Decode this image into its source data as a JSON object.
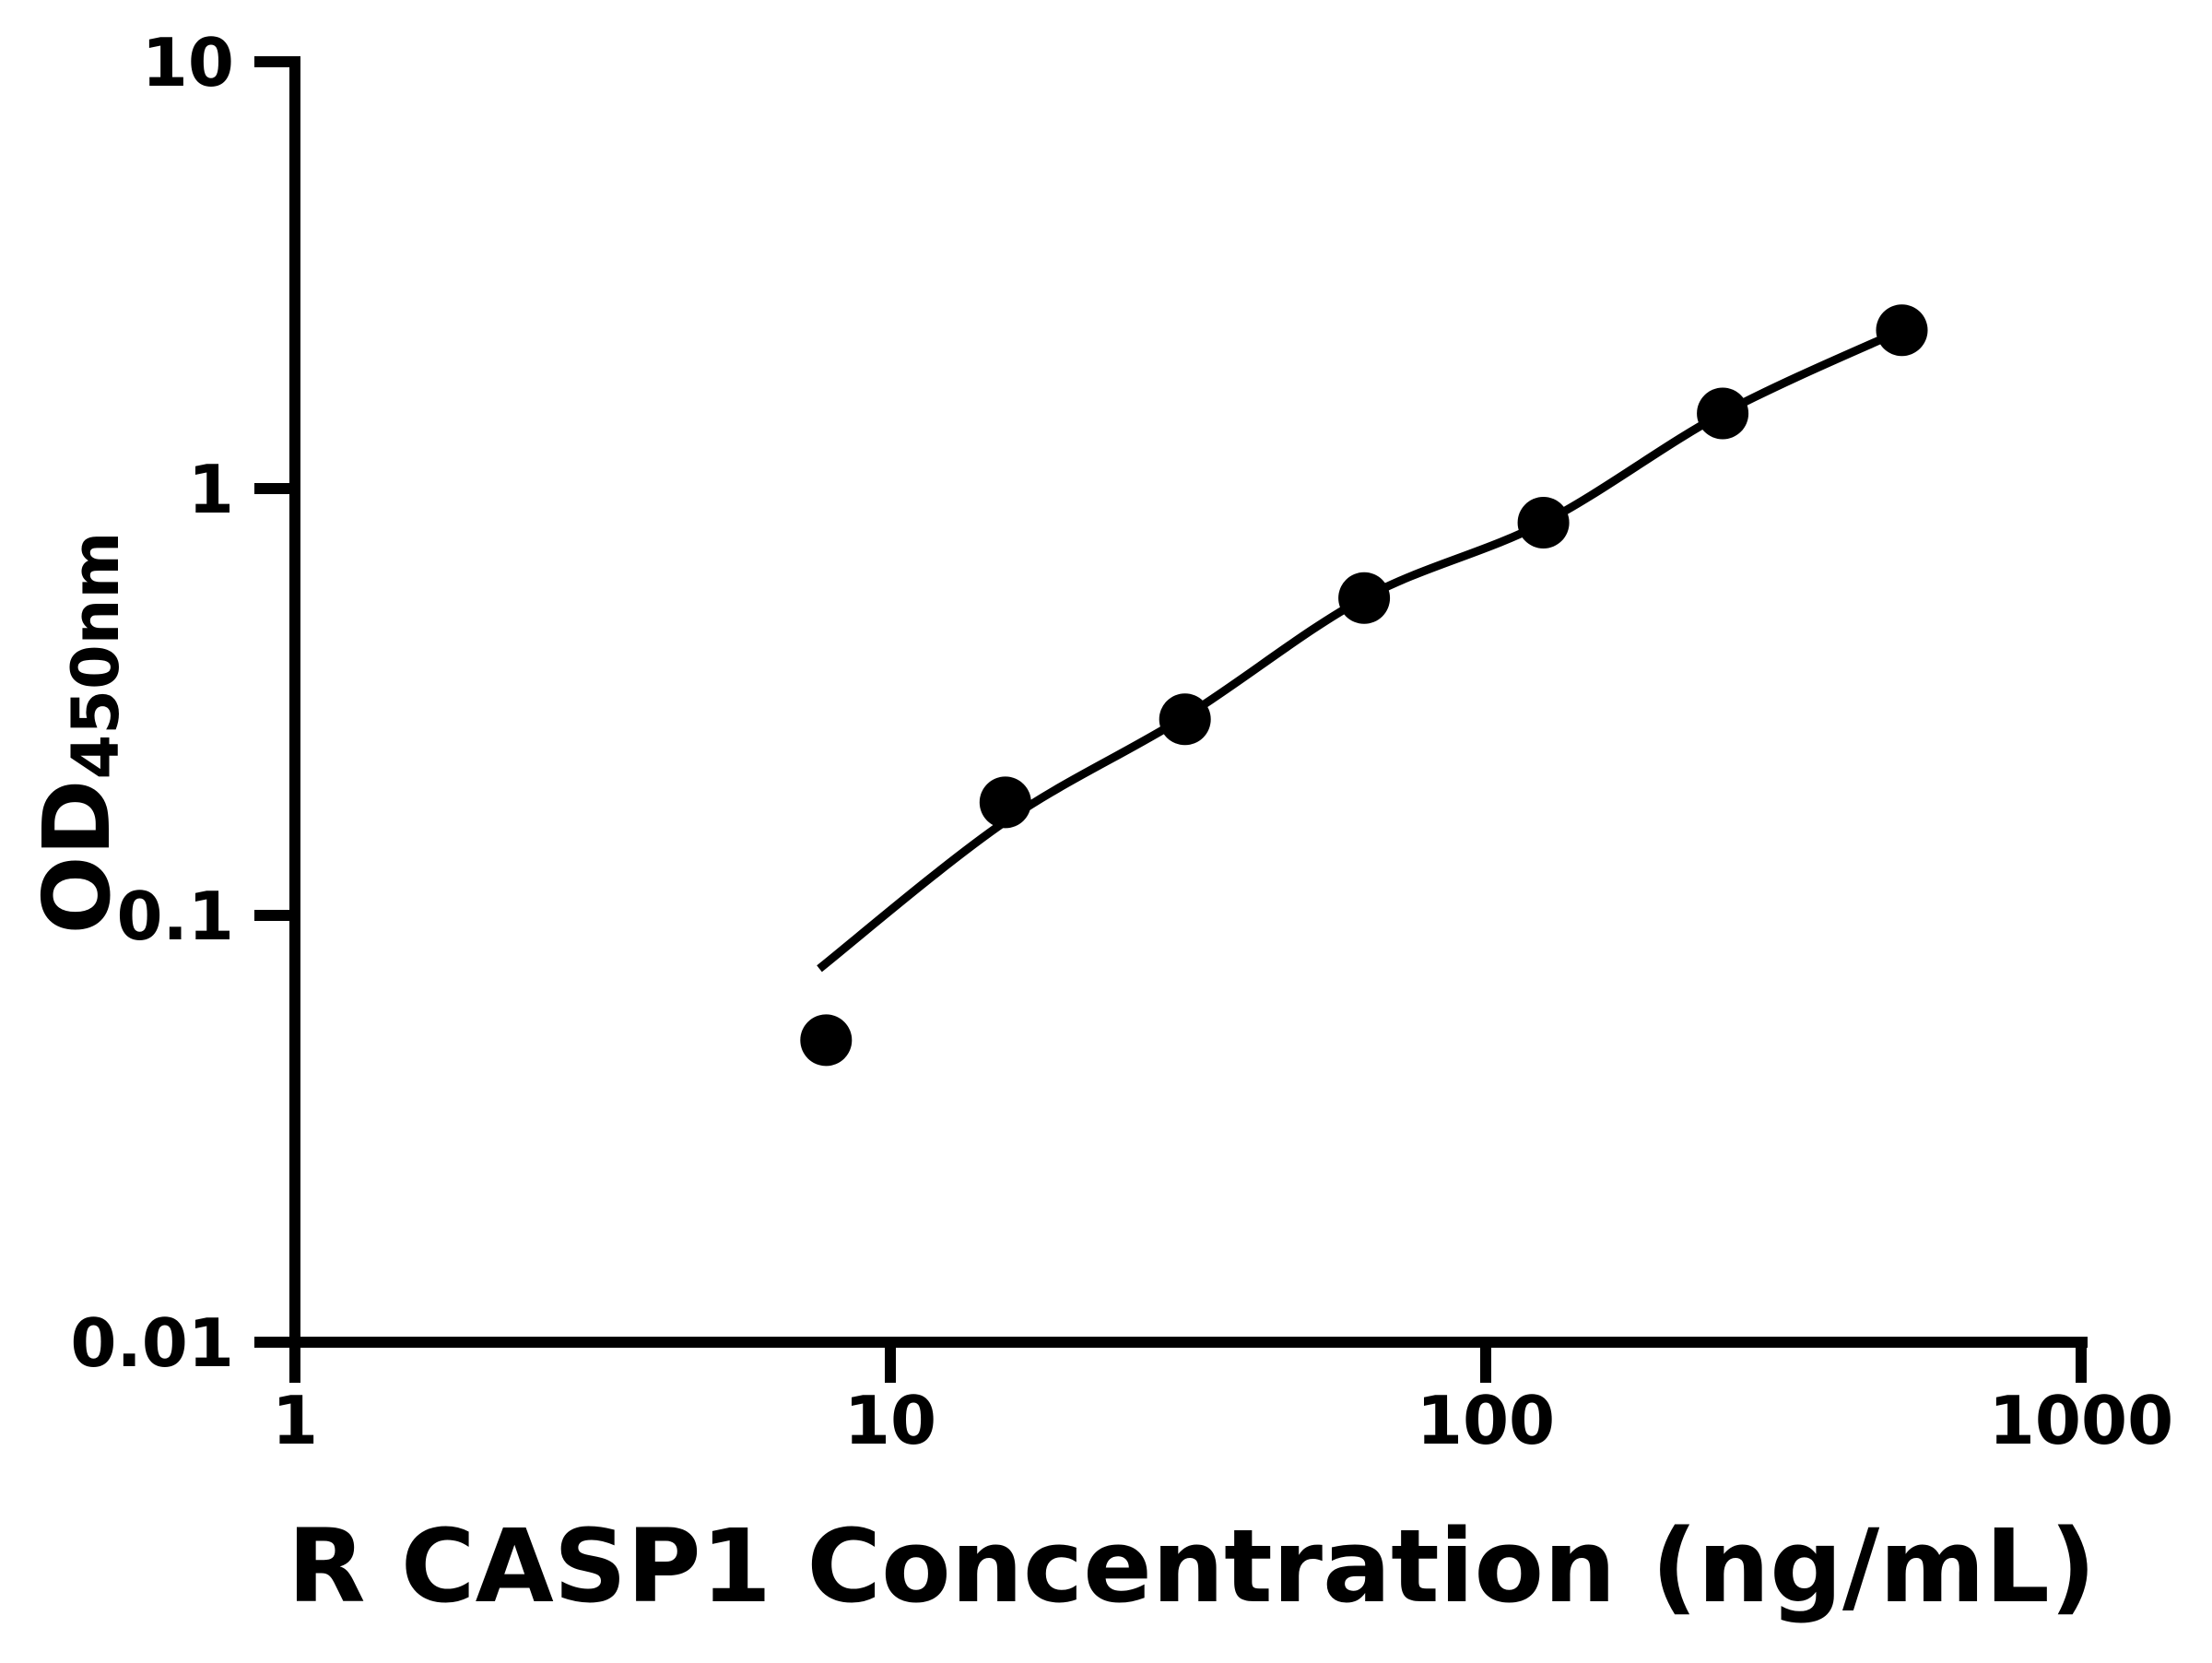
{
  "figure": {
    "background_color": "#ffffff",
    "ink_color": "#000000"
  },
  "chart_data": {
    "type": "scatter",
    "title": "",
    "xlabel": "R CASP1 Concentration (ng/mL)",
    "ylabel_main": "OD",
    "ylabel_sub": "450nm",
    "xscale": "log",
    "yscale": "log",
    "xlim": [
      1,
      1000
    ],
    "ylim": [
      0.01,
      10
    ],
    "grid": false,
    "legend": "none",
    "x_ticks": [
      {
        "value": 1,
        "label": "1"
      },
      {
        "value": 10,
        "label": "10"
      },
      {
        "value": 100,
        "label": "100"
      },
      {
        "value": 1000,
        "label": "1000"
      }
    ],
    "y_ticks": [
      {
        "value": 10,
        "label": "10"
      },
      {
        "value": 1,
        "label": "1"
      },
      {
        "value": 0.1,
        "label": "0.1"
      },
      {
        "value": 0.01,
        "label": "0.01"
      }
    ],
    "series": [
      {
        "name": "standard-points",
        "marker": "filled-circle",
        "color": "#000000",
        "points": [
          {
            "x": 7.8,
            "y": 0.051
          },
          {
            "x": 15.6,
            "y": 0.184
          },
          {
            "x": 31.25,
            "y": 0.288
          },
          {
            "x": 62.5,
            "y": 0.554
          },
          {
            "x": 125,
            "y": 0.832
          },
          {
            "x": 250,
            "y": 1.5
          },
          {
            "x": 500,
            "y": 2.35
          }
        ]
      }
    ],
    "fit_curve": {
      "name": "fitted-standard-curve",
      "color": "#000000",
      "points": [
        {
          "x": 7.6,
          "y": 0.075
        },
        {
          "x": 15.6,
          "y": 0.166
        },
        {
          "x": 31.25,
          "y": 0.292
        },
        {
          "x": 62.5,
          "y": 0.554
        },
        {
          "x": 125,
          "y": 0.832
        },
        {
          "x": 250,
          "y": 1.5
        },
        {
          "x": 500,
          "y": 2.35
        }
      ]
    }
  }
}
